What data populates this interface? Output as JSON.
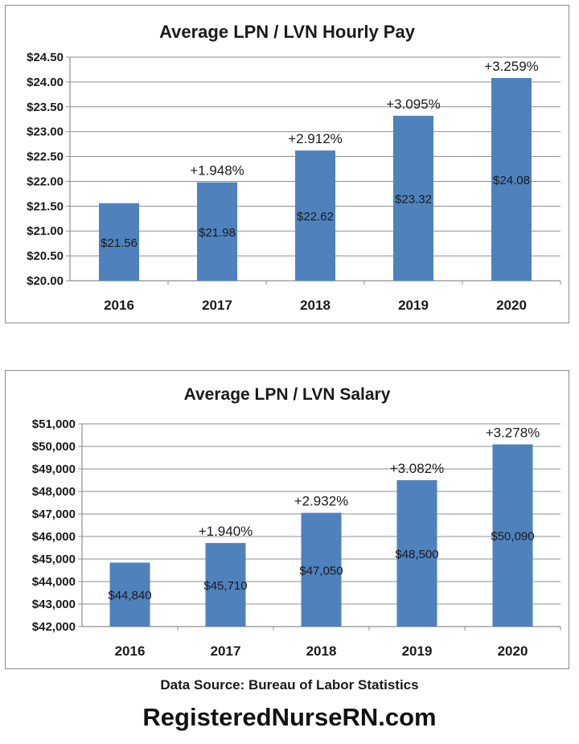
{
  "chart_data": [
    {
      "type": "bar",
      "title": "Average LPN / LVN Hourly Pay",
      "categories": [
        "2016",
        "2017",
        "2018",
        "2019",
        "2020"
      ],
      "values": [
        21.56,
        21.98,
        22.62,
        23.32,
        24.08
      ],
      "value_labels": [
        "$21.56",
        "$21.98",
        "$22.62",
        "$23.32",
        "$24.08"
      ],
      "change_labels": [
        "",
        "+1.948%",
        "+2.912%",
        "+3.095%",
        "+3.259%"
      ],
      "ylim": [
        20.0,
        24.5
      ],
      "yticks": [
        20.0,
        20.5,
        21.0,
        21.5,
        22.0,
        22.5,
        23.0,
        23.5,
        24.0,
        24.5
      ],
      "ytick_labels": [
        "$20.00",
        "$20.50",
        "$21.00",
        "$21.50",
        "$22.00",
        "$22.50",
        "$23.00",
        "$23.50",
        "$24.00",
        "$24.50"
      ],
      "grid": true,
      "bar_color": "#4f81bd"
    },
    {
      "type": "bar",
      "title": "Average LPN / LVN Salary",
      "categories": [
        "2016",
        "2017",
        "2018",
        "2019",
        "2020"
      ],
      "values": [
        44840,
        45710,
        47050,
        48500,
        50090
      ],
      "value_labels": [
        "$44,840",
        "$45,710",
        "$47,050",
        "$48,500",
        "$50,090"
      ],
      "change_labels": [
        "",
        "+1.940%",
        "+2.932%",
        "+3.082%",
        "+3.278%"
      ],
      "ylim": [
        42000,
        51000
      ],
      "yticks": [
        42000,
        43000,
        44000,
        45000,
        46000,
        47000,
        48000,
        49000,
        50000,
        51000
      ],
      "ytick_labels": [
        "$42,000",
        "$43,000",
        "$44,000",
        "$45,000",
        "$46,000",
        "$47,000",
        "$48,000",
        "$49,000",
        "$50,000",
        "$51,000"
      ],
      "grid": true,
      "bar_color": "#4f81bd"
    }
  ],
  "footer": {
    "source": "Data Source: Bureau of Labor Statistics",
    "site": "RegisteredNurseRN.com"
  }
}
